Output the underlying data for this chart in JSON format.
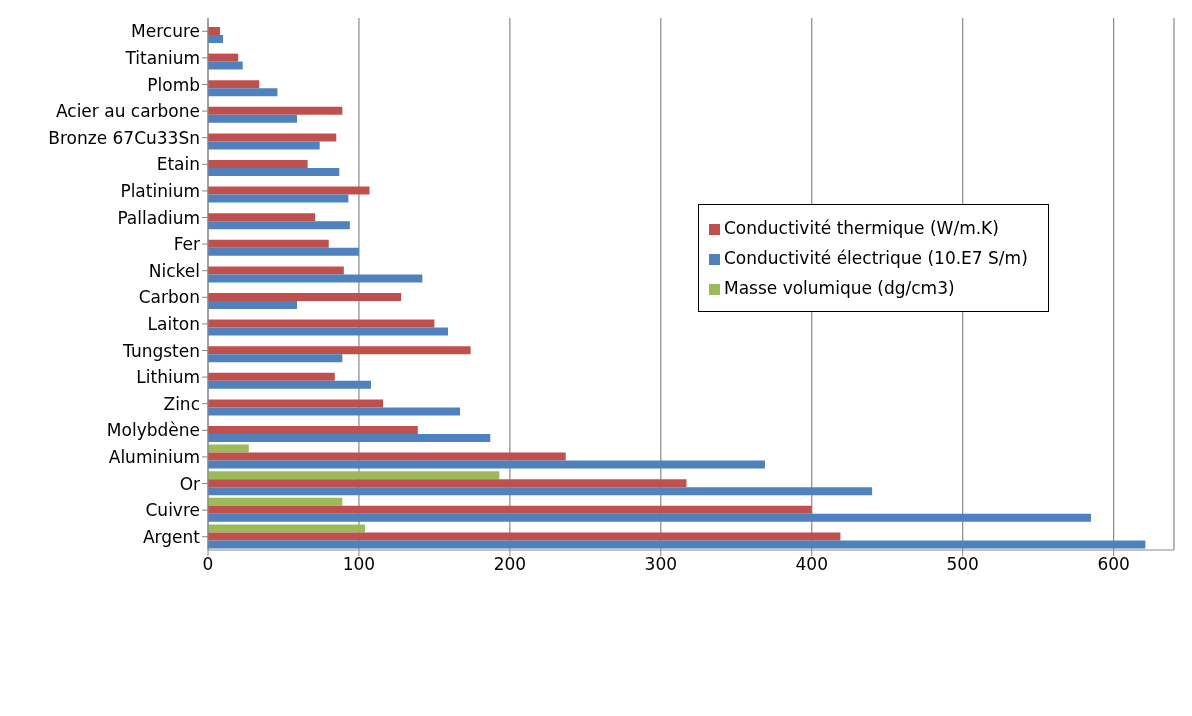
{
  "chart_data": {
    "type": "bar",
    "orientation": "horizontal",
    "categories": [
      "Mercure",
      "Titanium",
      "Plomb",
      "Acier au carbone",
      "Bronze 67Cu33Sn",
      "Etain",
      "Platinium",
      "Palladium",
      "Fer",
      "Nickel",
      "Carbon",
      "Laiton",
      "Tungsten",
      "Lithium",
      "Zinc",
      "Molybdène",
      "Aluminium",
      "Or",
      "Cuivre",
      "Argent"
    ],
    "series": [
      {
        "name": "Masse volumique (dg/cm3)",
        "color": "#9bbb59",
        "values": [
          null,
          null,
          null,
          null,
          null,
          null,
          null,
          null,
          null,
          null,
          null,
          null,
          null,
          null,
          null,
          null,
          27,
          193,
          89,
          104
        ]
      },
      {
        "name": "Conductivité thermique (W/m.K)",
        "color": "#c0504d",
        "values": [
          8,
          20,
          34,
          89,
          85,
          66,
          107,
          71,
          80,
          90,
          128,
          150,
          174,
          84,
          116,
          139,
          237,
          317,
          400,
          419
        ]
      },
      {
        "name": "Conductivité électrique (10.E7 S/m)",
        "color": "#4f81bd",
        "values": [
          10,
          23,
          46,
          59,
          74,
          87,
          93,
          94,
          100,
          142,
          59,
          159,
          89,
          108,
          167,
          187,
          369,
          440,
          585,
          621
        ]
      }
    ],
    "xlim": [
      0,
      640
    ],
    "xticks": [
      0,
      100,
      200,
      300,
      400,
      500,
      600
    ],
    "grid": "x",
    "legend": "right"
  }
}
